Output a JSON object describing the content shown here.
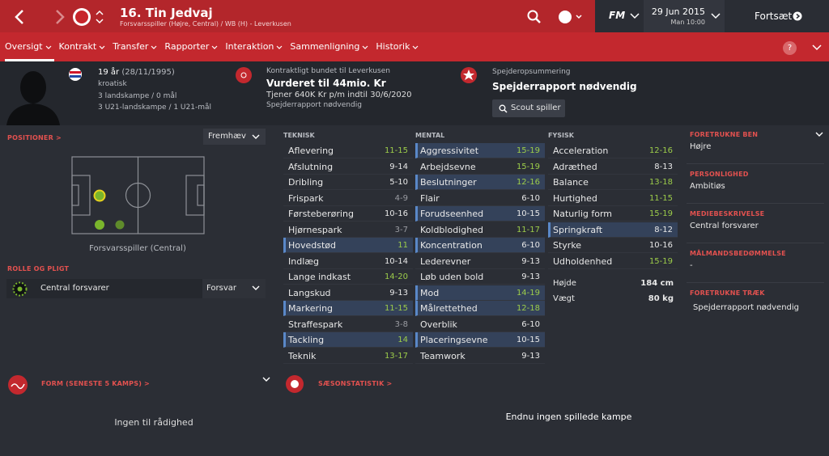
{
  "header": {
    "title": "16. Tin Jedvaj",
    "subtitle": "Forsvarsspiller (Højre, Central) / WB (H) - Leverkusen",
    "logo": "FM",
    "date": "29 Jun 2015",
    "time": "Man 10:00",
    "continue": "Fortsæt"
  },
  "nav": {
    "tabs": [
      "Oversigt",
      "Kontrakt",
      "Transfer",
      "Rapporter",
      "Interaktion",
      "Sammenligning",
      "Historik"
    ],
    "help": "?"
  },
  "profile": {
    "age": "19 år",
    "dob": "(28/11/1995)",
    "nationality": "kroatisk",
    "caps": "3 landskampe / 0 mål",
    "u21": "3 U21-landskampe / 1 U21-mål"
  },
  "contract": {
    "club": "Kontraktligt bundet til Leverkusen",
    "value": "Vurderet til 44mio. Kr",
    "wage": "Tjener 640K Kr p/m indtil 30/6/2020",
    "note": "Spejderrapport nødvendig"
  },
  "scout": {
    "label": "Spejderopsummering",
    "title": "Spejderrapport nødvendig",
    "button": "Scout spiller"
  },
  "positions": {
    "title": "POSITIONER >",
    "dropdown": "Fremhæv",
    "caption": "Forsvarsspiller (Central)"
  },
  "role": {
    "title": "ROLLE OG PLIGT",
    "role": "Central forsvarer",
    "duty": "Forsvar"
  },
  "attributes": [
    {
      "title": "TEKNISK",
      "rows": [
        {
          "name": "Aflevering",
          "value": "11-15"
        },
        {
          "name": "Afslutning",
          "value": "9-14"
        },
        {
          "name": "Dribling",
          "value": "5-10"
        },
        {
          "name": "Frispark",
          "value": "4-9"
        },
        {
          "name": "Førsteberøring",
          "value": "10-16"
        },
        {
          "name": "Hjørnespark",
          "value": "3-7"
        },
        {
          "name": "Hovedstød",
          "value": "11",
          "key": true
        },
        {
          "name": "Indlæg",
          "value": "10-14"
        },
        {
          "name": "Lange indkast",
          "value": "14-20"
        },
        {
          "name": "Langskud",
          "value": "9-13"
        },
        {
          "name": "Markering",
          "value": "11-15",
          "key": true
        },
        {
          "name": "Straffespark",
          "value": "3-8"
        },
        {
          "name": "Tackling",
          "value": "14",
          "key": true
        },
        {
          "name": "Teknik",
          "value": "13-17"
        }
      ]
    },
    {
      "title": "MENTAL",
      "rows": [
        {
          "name": "Aggressivitet",
          "value": "15-19",
          "key": true
        },
        {
          "name": "Arbejdsevne",
          "value": "15-19"
        },
        {
          "name": "Beslutninger",
          "value": "12-16",
          "key": true
        },
        {
          "name": "Flair",
          "value": "6-10"
        },
        {
          "name": "Forudseenhed",
          "value": "10-15",
          "key": true
        },
        {
          "name": "Koldblodighed",
          "value": "11-17"
        },
        {
          "name": "Koncentration",
          "value": "6-10",
          "key": true
        },
        {
          "name": "Lederevner",
          "value": "9-13"
        },
        {
          "name": "Løb uden bold",
          "value": "9-13"
        },
        {
          "name": "Mod",
          "value": "14-19",
          "key": true
        },
        {
          "name": "Målrettethed",
          "value": "12-18",
          "key": true
        },
        {
          "name": "Overblik",
          "value": "6-10"
        },
        {
          "name": "Placeringsevne",
          "value": "10-15",
          "key": true
        },
        {
          "name": "Teamwork",
          "value": "9-13"
        }
      ]
    },
    {
      "title": "FYSISK",
      "rows": [
        {
          "name": "Acceleration",
          "value": "12-16"
        },
        {
          "name": "Adræthed",
          "value": "8-13"
        },
        {
          "name": "Balance",
          "value": "13-18"
        },
        {
          "name": "Hurtighed",
          "value": "11-15"
        },
        {
          "name": "Naturlig form",
          "value": "15-19"
        },
        {
          "name": "Springkraft",
          "value": "8-12",
          "key": true
        },
        {
          "name": "Styrke",
          "value": "10-16"
        },
        {
          "name": "Udholdenhed",
          "value": "15-19"
        }
      ]
    }
  ],
  "physique": [
    {
      "name": "Højde",
      "value": "184 cm"
    },
    {
      "name": "Vægt",
      "value": "80 kg"
    }
  ],
  "info": [
    {
      "title": "FORETRUKNE BEN",
      "value": "Højre"
    },
    {
      "title": "PERSONLIGHED",
      "value": "Ambitiøs"
    },
    {
      "title": "MEDIEBESKRIVELSE",
      "value": "Central forsvarer"
    },
    {
      "title": "MÅLMANDSBEDØMMELSE",
      "value": "-"
    },
    {
      "title": "FORETRUKNE TRÆK",
      "value": "Spejderrapport nødvendig"
    }
  ],
  "form": {
    "title": "FORM (SENESTE 5 KAMPS) >",
    "empty": "Ingen til rådighed"
  },
  "season": {
    "title": "SÆSONSTATISTIK >",
    "empty": "Endnu ingen spillede kampe"
  }
}
